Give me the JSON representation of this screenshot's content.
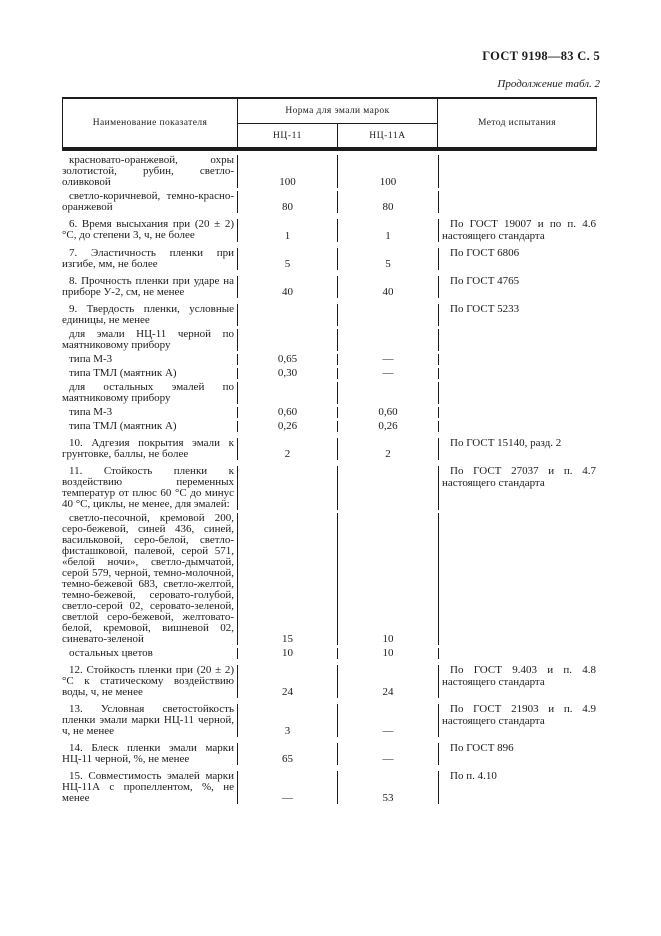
{
  "colors": {
    "ink": "#1c1c1c",
    "paper": "#ffffff"
  },
  "page": {
    "doc_ref": "ГОСТ 9198—83 С. 5",
    "continuation": "Продолжение табл. 2"
  },
  "table": {
    "header": {
      "indicator": "Наименование показателя",
      "norm_group": "Норма для эмали марок",
      "grade_1": "НЦ-11",
      "grade_2": "НЦ-11А",
      "method": "Метод испытания"
    },
    "rows": [
      {
        "kind": "first",
        "name": "красновато-оранжевой, охры золотистой, рубин, светло-оливковой",
        "v1": "100",
        "v2": "100",
        "method": ""
      },
      {
        "kind": "sub",
        "name": "светло-коричневой, темно-красно-оранжевой",
        "v1": "80",
        "v2": "80",
        "method": ""
      },
      {
        "kind": "item",
        "name": "6. Время высыхания при (20 ± 2) °С, до степени 3, ч, не более",
        "v1": "1",
        "v2": "1",
        "method": "По ГОСТ 19007 и по п. 4.6 настоящего стандарта"
      },
      {
        "kind": "item",
        "name": "7. Эластичность пленки при изгибе, мм, не более",
        "v1": "5",
        "v2": "5",
        "method": "По ГОСТ 6806"
      },
      {
        "kind": "item",
        "name": "8. Прочность пленки при ударе на приборе У-2, см, не менее",
        "v1": "40",
        "v2": "40",
        "method": "По ГОСТ 4765"
      },
      {
        "kind": "item",
        "name": "9. Твердость пленки, условные единицы, не менее",
        "v1": "",
        "v2": "",
        "method": "По ГОСТ 5233"
      },
      {
        "kind": "sub",
        "name": "для эмали НЦ-11 черной по маятниковому прибору",
        "v1": "",
        "v2": "",
        "method": ""
      },
      {
        "kind": "sub",
        "name": "типа М-3",
        "v1": "0,65",
        "v2": "—",
        "method": ""
      },
      {
        "kind": "sub",
        "name": "типа ТМЛ (маятник А)",
        "v1": "0,30",
        "v2": "—",
        "method": ""
      },
      {
        "kind": "sub",
        "name": "для остальных эмалей по маятниковому прибору",
        "v1": "",
        "v2": "",
        "method": ""
      },
      {
        "kind": "sub",
        "name": "типа М-3",
        "v1": "0,60",
        "v2": "0,60",
        "method": ""
      },
      {
        "kind": "sub",
        "name": "типа ТМЛ (маятник А)",
        "v1": "0,26",
        "v2": "0,26",
        "method": ""
      },
      {
        "kind": "item",
        "name": "10. Адгезия покрытия эмали к грунтовке, баллы, не более",
        "v1": "2",
        "v2": "2",
        "method": "По ГОСТ 15140, разд. 2"
      },
      {
        "kind": "item",
        "name": "11. Стойкость пленки к воздействию переменных температур от плюс 60 °С до минус 40 °С, циклы, не менее, для эмалей:",
        "v1": "",
        "v2": "",
        "method": "По ГОСТ 27037 и п. 4.7 настоящего стандарта"
      },
      {
        "kind": "sub",
        "name": "светло-песочной, кремовой 200, серо-бежевой, синей 436, синей, васильковой, серо-белой, светло-фисташковой, палевой, серой 571, «белой ночи», светло-дымчатой, серой 579, черной, темно-молочной, темно-бежевой 683, светло-желтой, темно-бежевой, серовато-голубой, светло-серой 02, серовато-зеленой, светлой серо-бежевой, желтовато-белой, кремовой, вишневой 02, синевато-зеленой",
        "v1": "15",
        "v2": "10",
        "method": ""
      },
      {
        "kind": "sub",
        "name": "остальных цветов",
        "v1": "10",
        "v2": "10",
        "method": ""
      },
      {
        "kind": "item",
        "name": "12. Стойкость пленки при (20 ± 2) °С к статическому воздействию воды, ч, не менее",
        "v1": "24",
        "v2": "24",
        "method": "По ГОСТ 9.403 и п. 4.8 настоящего стандарта"
      },
      {
        "kind": "item",
        "name": "13. Условная светостойкость пленки эмали марки НЦ-11 черной, ч, не менее",
        "v1": "3",
        "v2": "—",
        "method": "По ГОСТ 21903 и п. 4.9 настоящего стандарта"
      },
      {
        "kind": "item",
        "name": "14. Блеск пленки эмали марки НЦ-11 черной, %, не менее",
        "v1": "65",
        "v2": "—",
        "method": "По ГОСТ 896"
      },
      {
        "kind": "item",
        "name": "15. Совместимость эмалей марки НЦ-11А с пропеллентом, %, не менее",
        "v1": "—",
        "v2": "53",
        "method": "По п. 4.10"
      }
    ]
  }
}
